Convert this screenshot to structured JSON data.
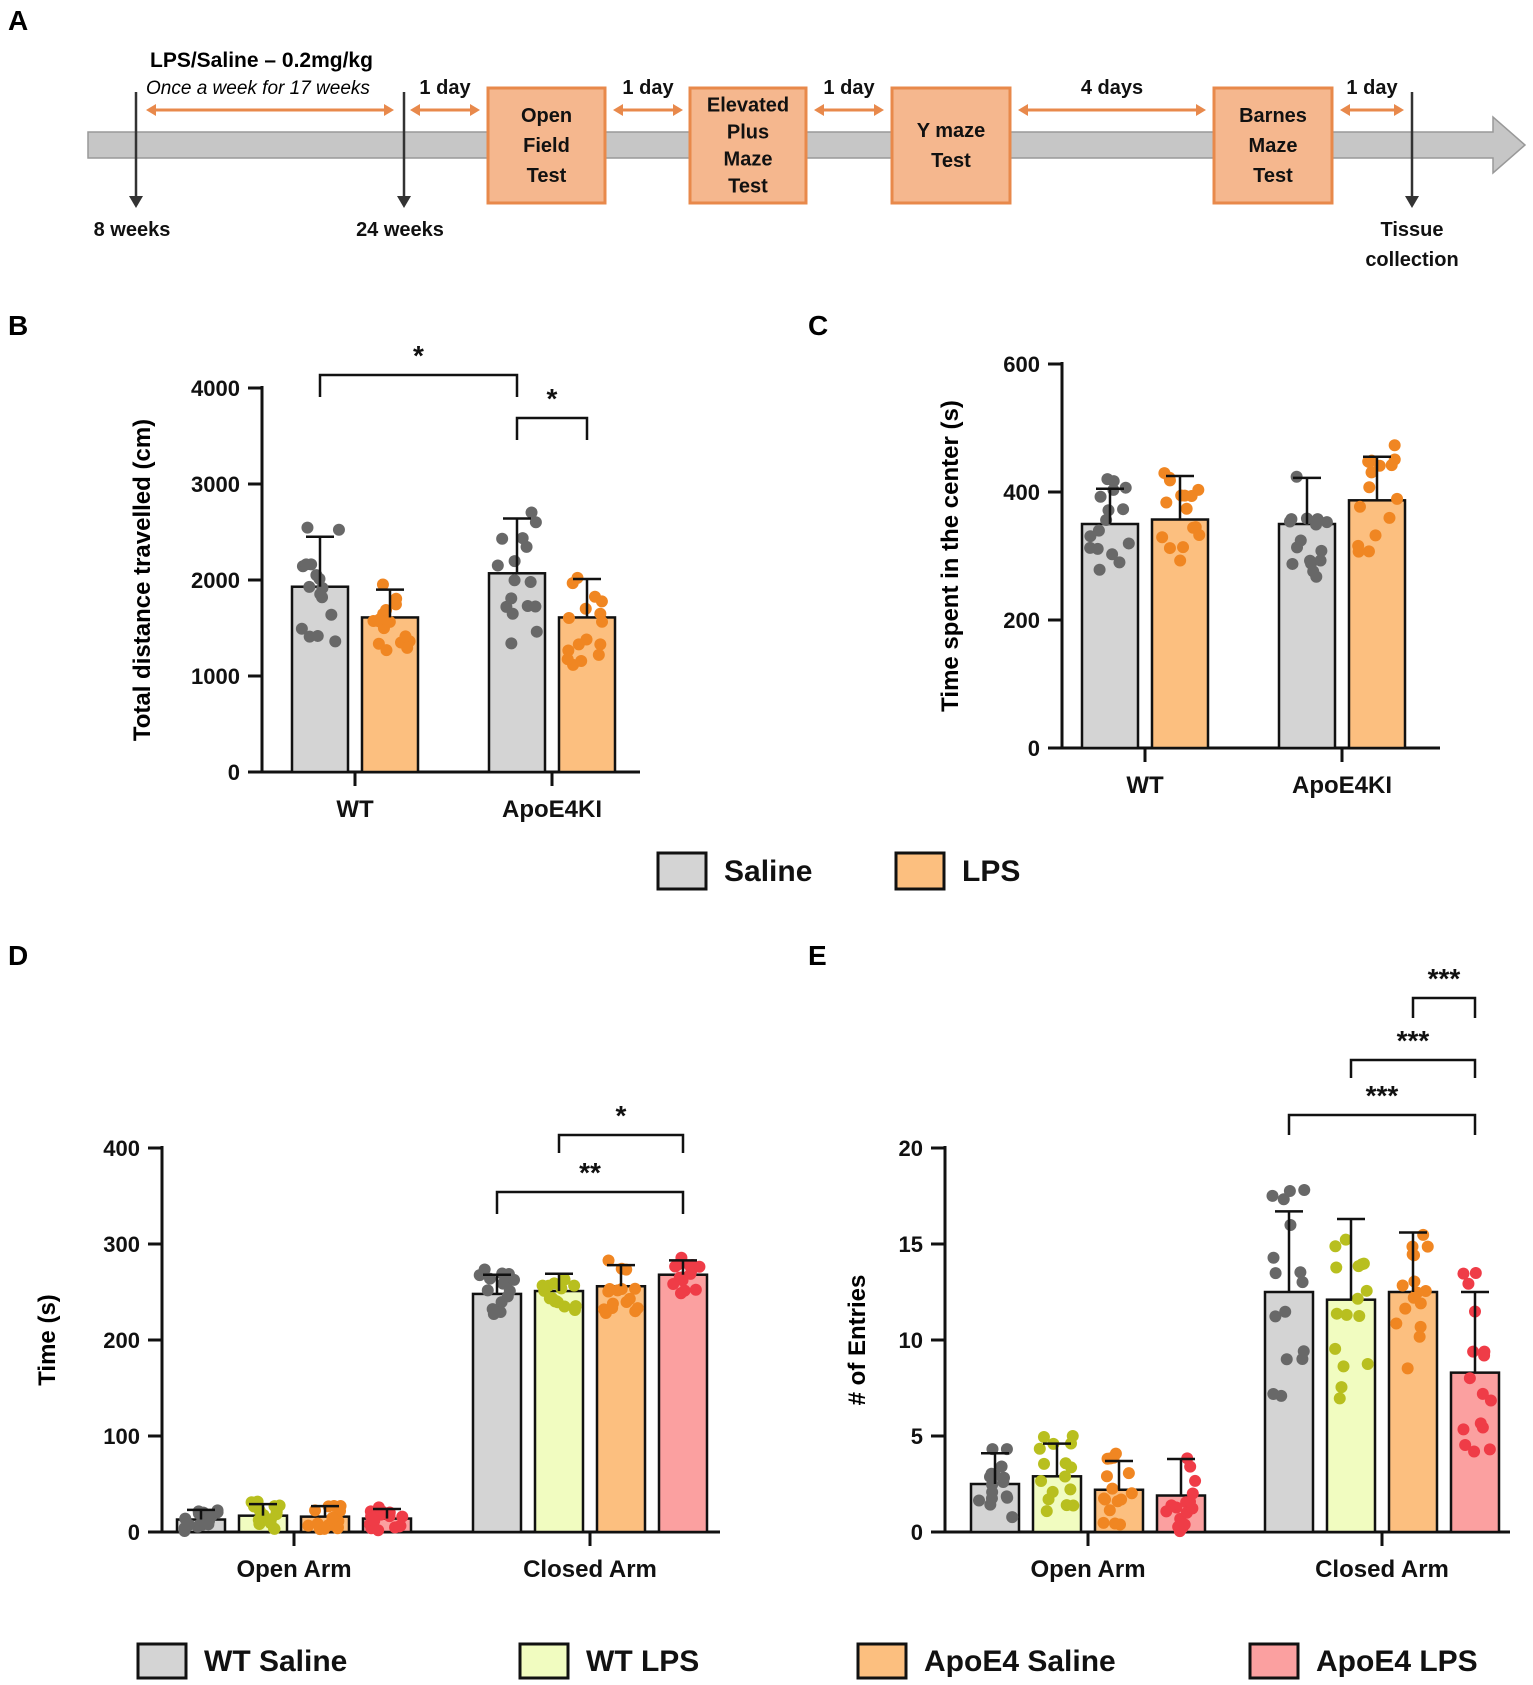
{
  "panel_labels": {
    "a": "A",
    "b": "B",
    "c": "C",
    "d": "D",
    "e": "E"
  },
  "timeline": {
    "treatment": "LPS/Saline – 0.2mg/kg",
    "schedule": "Once a week for 17 weeks",
    "start": "8 weeks",
    "end_treatment": "24 weeks",
    "tests": [
      [
        "Open",
        "Field",
        "Test"
      ],
      [
        "Elevated",
        "Plus",
        "Maze",
        "Test"
      ],
      [
        "Y maze",
        "Test"
      ],
      [
        "Barnes",
        "Maze",
        "Test"
      ]
    ],
    "gaps": [
      "1 day",
      "1 day",
      "1 day",
      "4 days",
      "1 day"
    ],
    "final": [
      "Tissue",
      "collection"
    ],
    "colors": {
      "arrow": "#c6c6c6",
      "box": "#f5b78e",
      "box_border": "#e8894b",
      "gap_arrow": "#e8894b"
    }
  },
  "legend_bc": [
    {
      "label": "Saline",
      "color": "#d4d4d4"
    },
    {
      "label": "LPS",
      "color": "#fcbf7f"
    }
  ],
  "legend_de": [
    {
      "label": "WT Saline",
      "color": "#d4d4d4"
    },
    {
      "label": "WT LPS",
      "color": "#f1fcc0"
    },
    {
      "label": "ApoE4 Saline",
      "color": "#fcbf7f"
    },
    {
      "label": "ApoE4 LPS",
      "color": "#fba0a0"
    }
  ],
  "dot_colors": {
    "WT Saline": "#686868",
    "WT LPS": "#b8bf1f",
    "ApoE4 Saline": "#f08622",
    "ApoE4 LPS": "#ef3c47"
  },
  "chart_data": [
    {
      "panel": "B",
      "type": "bar",
      "ylabel": "Total distance travelled (cm)",
      "ylim": [
        0,
        4000
      ],
      "yticks": [
        0,
        1000,
        2000,
        3000,
        4000
      ],
      "categories": [
        "WT",
        "ApoE4KI"
      ],
      "series": [
        {
          "name": "Saline",
          "values": [
            1930,
            2070
          ],
          "sd": [
            520,
            570
          ]
        },
        {
          "name": "LPS",
          "values": [
            1610,
            1610
          ],
          "sd": [
            290,
            400
          ]
        }
      ],
      "significance": [
        {
          "from": "WT Saline",
          "to": "ApoE4KI Saline",
          "label": "*"
        },
        {
          "from": "ApoE4KI Saline",
          "to": "ApoE4KI LPS",
          "label": "*"
        }
      ]
    },
    {
      "panel": "C",
      "type": "bar",
      "ylabel": "Time spent in the center (s)",
      "ylim": [
        0,
        600
      ],
      "yticks": [
        0,
        200,
        400,
        600
      ],
      "categories": [
        "WT",
        "ApoE4KI"
      ],
      "series": [
        {
          "name": "Saline",
          "values": [
            350,
            350
          ],
          "sd": [
            55,
            72
          ]
        },
        {
          "name": "LPS",
          "values": [
            357,
            387
          ],
          "sd": [
            68,
            68
          ]
        }
      ],
      "significance": []
    },
    {
      "panel": "D",
      "type": "bar",
      "ylabel": "Time (s)",
      "ylim": [
        0,
        400
      ],
      "yticks": [
        0,
        100,
        200,
        300,
        400
      ],
      "categories": [
        "Open Arm",
        "Closed Arm"
      ],
      "series": [
        {
          "name": "WT Saline",
          "values": [
            13,
            248
          ],
          "sd": [
            10,
            20
          ]
        },
        {
          "name": "WT LPS",
          "values": [
            17,
            251
          ],
          "sd": [
            12,
            18
          ]
        },
        {
          "name": "ApoE4 Saline",
          "values": [
            16,
            256
          ],
          "sd": [
            11,
            22
          ]
        },
        {
          "name": "ApoE4 LPS",
          "values": [
            14,
            268
          ],
          "sd": [
            10,
            15
          ]
        }
      ],
      "significance": [
        {
          "from": "Closed Arm WT LPS",
          "to": "Closed Arm ApoE4 LPS",
          "label": "*"
        },
        {
          "from": "Closed Arm WT Saline",
          "to": "Closed Arm ApoE4 LPS",
          "label": "**"
        }
      ]
    },
    {
      "panel": "E",
      "type": "bar",
      "ylabel": "# of Entries",
      "ylim": [
        0,
        20
      ],
      "yticks": [
        0,
        5,
        10,
        15,
        20
      ],
      "categories": [
        "Open Arm",
        "Closed Arm"
      ],
      "series": [
        {
          "name": "WT Saline",
          "values": [
            2.5,
            12.5
          ],
          "sd": [
            1.6,
            4.2
          ]
        },
        {
          "name": "WT LPS",
          "values": [
            2.9,
            12.1
          ],
          "sd": [
            1.7,
            4.2
          ]
        },
        {
          "name": "ApoE4 Saline",
          "values": [
            2.2,
            12.5
          ],
          "sd": [
            1.5,
            3.1
          ]
        },
        {
          "name": "ApoE4 LPS",
          "values": [
            1.9,
            8.3
          ],
          "sd": [
            1.9,
            4.2
          ]
        }
      ],
      "significance": [
        {
          "from": "Closed Arm ApoE4 Saline",
          "to": "Closed Arm ApoE4 LPS",
          "label": "***"
        },
        {
          "from": "Closed Arm WT LPS",
          "to": "Closed Arm ApoE4 LPS",
          "label": "***"
        },
        {
          "from": "Closed Arm WT Saline",
          "to": "Closed Arm ApoE4 LPS",
          "label": "***"
        }
      ]
    }
  ]
}
